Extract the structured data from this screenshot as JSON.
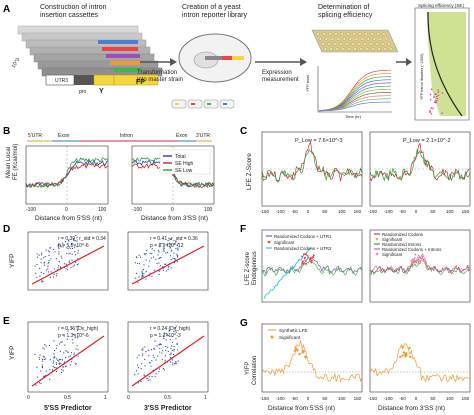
{
  "panels": {
    "A": {
      "letter": "A",
      "step1": "Construction of intron\ninsertion cassettes",
      "step2": "Creation of a yeast\nintron reporter library",
      "step3": "Determination of\nsplicing efficiency",
      "transform": "Transformation\ninto master strain",
      "expression": "Expression\nmeasurement",
      "count": "10^3",
      "utr": "UTR3",
      "pro": "pro",
      "y": "Y",
      "fp": "FP",
      "yfp_axis": "YFP level",
      "time_axis": "Time (hr)",
      "spl_title": "Splicing efficiency (SE)",
      "spl_axis": "YFP intron libraries (~2000)"
    },
    "B": {
      "letter": "B",
      "ylabel": "Mean Local\nFE (Kcal/mol)",
      "regions": [
        "5'UTR",
        "Exon",
        "Intron",
        "Exon",
        "3'UTR"
      ],
      "legend": [
        "Total",
        "SE High",
        "SE Low"
      ],
      "xlabel1": "Distance from 5'SS (nt)",
      "xlabel2": "Distance from 3'SS (nt)",
      "ticks": [
        "-100",
        "0",
        "100"
      ]
    },
    "C": {
      "letter": "C",
      "ylabel": "LFE Z-Score",
      "p1": "P_Low = 7.6×10^-3",
      "p2": "P_Low = 2.1×10^-2",
      "ticks": [
        "-150",
        "-100",
        "-50",
        "0",
        "50",
        "100",
        "150"
      ],
      "yticks": [
        "4",
        "2",
        "0",
        "-2",
        "-4"
      ]
    },
    "D": {
      "letter": "D",
      "ylabel": "YIFP",
      "stats1": [
        "r = 0.39 ; r_std = 0.34",
        "p = 5.0×10^-6"
      ],
      "stats2": [
        "r = 0.41 ; r_std = 0.36",
        "p = 8.9×10^-12"
      ],
      "ticks": [
        "0",
        "0.5",
        "1"
      ]
    },
    "E": {
      "letter": "E",
      "ylabel": "YIFP",
      "stats1": [
        "r = 0.36 (Dv_high)",
        "p = 1.3×10^-6"
      ],
      "stats2": [
        "r = 0.24 (Dv_high)",
        "p = 1.2×10^-3"
      ],
      "xlabel1": "5'SS Predictor",
      "xlabel2": "3'SS Predictor",
      "ticks": [
        "0",
        "0.5",
        "1"
      ]
    },
    "F": {
      "letter": "F",
      "ylabel": "LFE Z-score\nEndogenous",
      "legend1": [
        "Randomized Codons + UTR1",
        "Significant",
        "Randomized Codons + UTR2"
      ],
      "legend2": [
        "Randomized Codons",
        "Significant",
        "Randomized Introns",
        "Randomized Codons + Introns",
        "Significant"
      ],
      "colors1": [
        "#7d5fb0",
        "#e44",
        "#3cc8e8"
      ],
      "colors2": [
        "#d04040",
        "#ea6",
        "#3a3",
        "#c060c0",
        "#e8a"
      ],
      "yticks": [
        "4",
        "2",
        "0",
        "-2",
        "-4"
      ]
    },
    "G": {
      "letter": "G",
      "ylabel": "YIFP\nCorrelation",
      "legend": [
        "Synthetic LFE",
        "Significant"
      ],
      "xlabel1": "Distance from 5'SS (nt)",
      "xlabel2": "Distance from 3'SS (nt)",
      "ticks": [
        "-150",
        "-100",
        "-50",
        "0",
        "50",
        "100",
        "150"
      ],
      "yticks": [
        "0.4",
        "0.2",
        "0"
      ]
    }
  },
  "colors": {
    "total": "#2a3a9a",
    "high": "#c62828",
    "low": "#2e9c3a",
    "scatter": "#2b4fa8",
    "fitline": "#e02020",
    "fpyellow": "#f6d63a",
    "orange": "#f29a2e"
  }
}
